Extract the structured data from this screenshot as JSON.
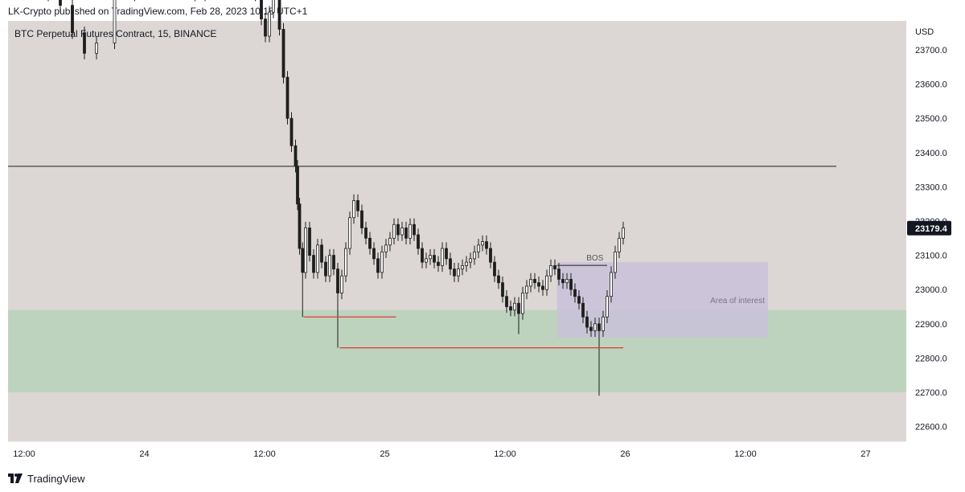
{
  "header": {
    "published_line": "LK-Crypto published on TradingView.com, Feb 28, 2023 10:18 UTC+1",
    "symbol_line": "BTC Perpetual Futures Contract, 15, BINANCE"
  },
  "footer": {
    "brand": "TradingView",
    "logo_icon": "tradingview-logo-icon"
  },
  "colors": {
    "plot_bg": "#dcd7d4",
    "demand_zone": "#bdd3bd",
    "interest_zone": "#c9c2d9",
    "red_line": "#e53935",
    "price_tag_bg": "#131722",
    "candle": "#1e1e1e"
  },
  "chart_data": {
    "type": "candlestick",
    "symbol": "BTC Perpetual Futures Contract",
    "interval": "15",
    "exchange": "BINANCE",
    "currency_label": "USD",
    "y_ticks": [
      23700.0,
      23600.0,
      23500.0,
      23400.0,
      23300.0,
      23200.0,
      23100.0,
      23000.0,
      22900.0,
      22800.0,
      22700.0,
      22600.0
    ],
    "y_tick_labels": [
      "23700.0",
      "23600.0",
      "23500.0",
      "23400.0",
      "23300.0",
      "23200.0",
      "23100.0",
      "23000.0",
      "22900.0",
      "22800.0",
      "22700.0",
      "22600.0"
    ],
    "x_ticks": [
      "12:00",
      "24",
      "12:00",
      "25",
      "12:00",
      "26",
      "12:00",
      "27"
    ],
    "last_price": "23179.4",
    "price_path": [
      [
        0.0,
        23900
      ],
      [
        0.6,
        23880
      ],
      [
        1.2,
        23860
      ],
      [
        1.8,
        23830
      ],
      [
        2.4,
        23750
      ],
      [
        3.0,
        23690
      ],
      [
        3.6,
        23720
      ],
      [
        4.5,
        23860
      ],
      [
        5.5,
        23900
      ],
      [
        6.5,
        23880
      ],
      [
        7.5,
        23870
      ],
      [
        8.5,
        23860
      ],
      [
        9.0,
        23880
      ],
      [
        11.5,
        23860
      ],
      [
        11.8,
        23790
      ],
      [
        12.0,
        23740
      ],
      [
        12.2,
        23810
      ],
      [
        12.4,
        23880
      ],
      [
        12.7,
        23760
      ],
      [
        12.9,
        23620
      ],
      [
        13.1,
        23500
      ],
      [
        13.3,
        23420
      ],
      [
        13.5,
        23360
      ],
      [
        13.6,
        23250
      ],
      [
        13.7,
        23120
      ],
      [
        13.85,
        23050
      ],
      [
        14.0,
        23180
      ],
      [
        14.2,
        23100
      ],
      [
        14.4,
        23050
      ],
      [
        14.6,
        23130
      ],
      [
        14.8,
        23080
      ],
      [
        15.0,
        23040
      ],
      [
        15.2,
        23100
      ],
      [
        15.4,
        23060
      ],
      [
        15.6,
        22990
      ],
      [
        15.8,
        23040
      ],
      [
        16.0,
        23120
      ],
      [
        16.2,
        23210
      ],
      [
        16.4,
        23260
      ],
      [
        16.6,
        23230
      ],
      [
        16.8,
        23180
      ],
      [
        17.0,
        23150
      ],
      [
        17.2,
        23120
      ],
      [
        17.4,
        23090
      ],
      [
        17.6,
        23050
      ],
      [
        17.8,
        23110
      ],
      [
        18.0,
        23130
      ],
      [
        18.2,
        23150
      ],
      [
        18.4,
        23190
      ],
      [
        18.6,
        23160
      ],
      [
        18.8,
        23180
      ],
      [
        19.0,
        23150
      ],
      [
        19.2,
        23190
      ],
      [
        19.4,
        23160
      ],
      [
        19.6,
        23120
      ],
      [
        19.8,
        23080
      ],
      [
        20.0,
        23090
      ],
      [
        20.2,
        23100
      ],
      [
        20.4,
        23080
      ],
      [
        20.6,
        23070
      ],
      [
        20.8,
        23120
      ],
      [
        21.0,
        23090
      ],
      [
        21.2,
        23060
      ],
      [
        21.4,
        23040
      ],
      [
        21.6,
        23060
      ],
      [
        21.8,
        23070
      ],
      [
        22.0,
        23080
      ],
      [
        22.2,
        23090
      ],
      [
        22.4,
        23110
      ],
      [
        22.6,
        23130
      ],
      [
        22.8,
        23140
      ],
      [
        23.0,
        23120
      ],
      [
        23.2,
        23080
      ],
      [
        23.4,
        23040
      ],
      [
        23.6,
        23020
      ],
      [
        23.8,
        22980
      ],
      [
        24.0,
        22950
      ],
      [
        24.2,
        22940
      ],
      [
        24.4,
        22960
      ],
      [
        24.6,
        22930
      ],
      [
        24.8,
        22990
      ],
      [
        25.0,
        23010
      ],
      [
        25.2,
        23030
      ],
      [
        25.4,
        23020
      ],
      [
        25.6,
        23010
      ],
      [
        25.8,
        23000
      ],
      [
        26.0,
        23040
      ],
      [
        26.2,
        23070
      ],
      [
        26.4,
        23060
      ],
      [
        26.6,
        23030
      ],
      [
        26.8,
        23020
      ],
      [
        27.0,
        23030
      ],
      [
        27.2,
        23000
      ],
      [
        27.4,
        22980
      ],
      [
        27.6,
        22960
      ],
      [
        27.8,
        22920
      ],
      [
        28.0,
        22890
      ],
      [
        28.2,
        22880
      ],
      [
        28.4,
        22900
      ],
      [
        28.6,
        22880
      ],
      [
        28.8,
        22920
      ],
      [
        29.0,
        22980
      ],
      [
        29.2,
        23050
      ],
      [
        29.4,
        23110
      ],
      [
        29.6,
        23150
      ],
      [
        29.8,
        23180
      ]
    ],
    "key_lows": [
      {
        "x": 13.85,
        "price": 22920
      },
      {
        "x": 15.6,
        "price": 22830
      },
      {
        "x": 24.6,
        "price": 22870
      },
      {
        "x": 28.6,
        "price": 22690
      }
    ],
    "horizontal_line": {
      "price": 23360,
      "x_start": 0,
      "x_end": 40
    },
    "demand_zone": {
      "price_top": 22940,
      "price_bottom": 22700
    },
    "interest_zone": {
      "price_top": 23080,
      "price_bottom": 22860,
      "x_start": 26.5,
      "x_end": 37.0,
      "label": "Area of interest"
    },
    "bos": {
      "price": 23080,
      "x_start": 26.5,
      "x_end": 29.0,
      "label": "BOS"
    },
    "red_lines": [
      {
        "price": 22920,
        "x_start": 13.9,
        "x_end": 18.5
      },
      {
        "price": 22830,
        "x_start": 15.7,
        "x_end": 29.8
      }
    ]
  }
}
